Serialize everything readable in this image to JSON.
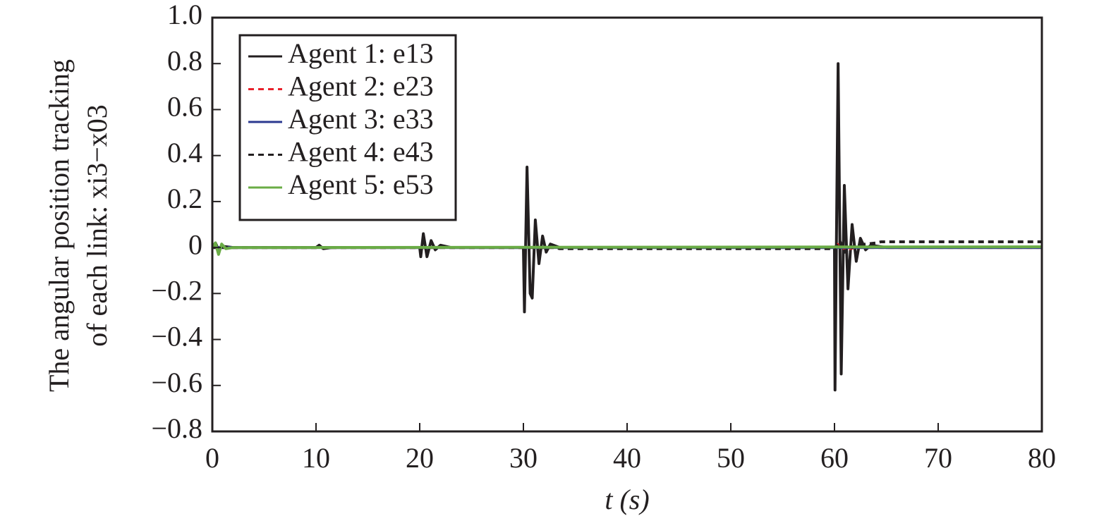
{
  "chart_data": {
    "type": "line",
    "xlabel": "t (s)",
    "ylabel": [
      "The angular position tracking",
      "of each link: xi3−x03"
    ],
    "xlim": [
      0,
      80
    ],
    "xticks": [
      0,
      10,
      20,
      30,
      40,
      50,
      60,
      70,
      80
    ],
    "ylim": [
      -0.8,
      1.0
    ],
    "yticks": [
      {
        "value": -0.8,
        "label": "−0.8"
      },
      {
        "value": -0.6,
        "label": "−0.6"
      },
      {
        "value": -0.4,
        "label": "−0.4"
      },
      {
        "value": -0.2,
        "label": "−0.2"
      },
      0,
      0.2,
      0.4,
      0.6,
      0.8,
      {
        "value": 1.0,
        "label": "1.0"
      }
    ],
    "legend": "upper left",
    "series": [
      {
        "name": "Agent 1: e13",
        "color": "#231f20",
        "dash": false,
        "x": [
          0,
          0.3,
          0.6,
          1,
          2,
          10,
          10.3,
          10.7,
          11.5,
          20,
          20.1,
          20.35,
          20.7,
          21.1,
          21.5,
          22,
          23,
          30,
          30.1,
          30.35,
          30.65,
          30.85,
          31.15,
          31.5,
          31.85,
          32.2,
          32.6,
          33.5,
          60,
          60.05,
          60.35,
          60.65,
          60.95,
          61.3,
          61.7,
          62.1,
          62.5,
          63,
          63.5,
          65,
          80
        ],
        "values": [
          0,
          0.02,
          -0.01,
          0.005,
          0,
          0,
          0.01,
          -0.005,
          0,
          0,
          -0.04,
          0.06,
          -0.04,
          0.03,
          -0.01,
          0.01,
          0,
          0,
          -0.28,
          0.35,
          -0.2,
          -0.22,
          0.12,
          -0.07,
          0.05,
          -0.02,
          0.015,
          0,
          0,
          -0.62,
          0.8,
          -0.55,
          0.27,
          -0.18,
          0.1,
          -0.06,
          0.04,
          -0.01,
          0.01,
          0,
          0
        ]
      },
      {
        "name": "Agent 2: e23",
        "color": "#e8202a",
        "dash": true,
        "x": [
          0,
          60,
          60.5,
          61,
          62,
          80
        ],
        "values": [
          0,
          0,
          0.02,
          -0.01,
          0,
          0
        ]
      },
      {
        "name": "Agent 3: e33",
        "color": "#2b3990",
        "dash": false,
        "x": [
          0,
          80
        ],
        "values": [
          0,
          0
        ]
      },
      {
        "name": "Agent 4: e43",
        "color": "#231f20",
        "dash": true,
        "x": [
          0,
          33,
          33.5,
          60,
          60.5,
          61,
          62,
          64,
          64.5,
          80
        ],
        "values": [
          0,
          0,
          -0.005,
          -0.005,
          0.03,
          -0.02,
          0.01,
          0.02,
          0.025,
          0.025
        ]
      },
      {
        "name": "Agent 5: e53",
        "color": "#6aac46",
        "dash": false,
        "x": [
          0,
          0.3,
          0.6,
          0.9,
          1.3,
          2,
          80
        ],
        "values": [
          0,
          0.02,
          -0.03,
          0.015,
          -0.005,
          0,
          0.003
        ]
      }
    ]
  }
}
